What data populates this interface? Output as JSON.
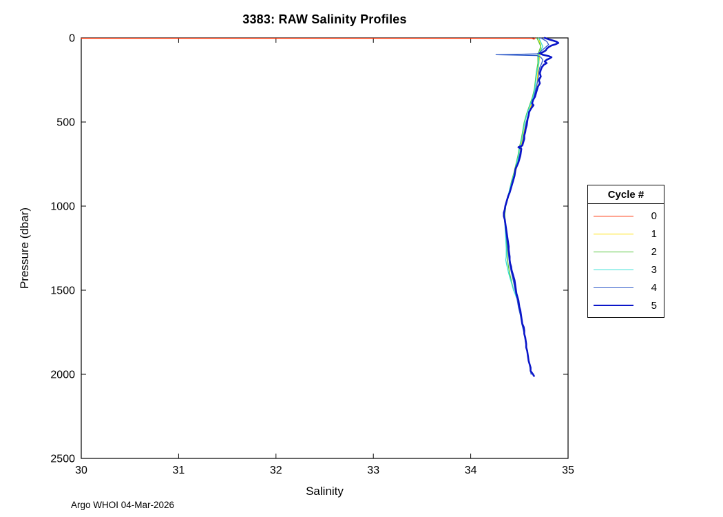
{
  "figure": {
    "title": "3383: RAW Salinity Profiles",
    "footer": "Argo WHOI 04-Mar-2026"
  },
  "chart_data": {
    "type": "line",
    "title": "3383: RAW Salinity Profiles",
    "xlabel": "Salinity",
    "ylabel": "Pressure (dbar)",
    "xlim": [
      30,
      35
    ],
    "ylim": [
      0,
      2500
    ],
    "y_axis_reversed": true,
    "x_ticks": [
      "30",
      "31",
      "32",
      "33",
      "34",
      "35"
    ],
    "x_tick_values": [
      30,
      31,
      32,
      33,
      34,
      35
    ],
    "y_ticks": [
      "0",
      "500",
      "1000",
      "1500",
      "2000",
      "2500"
    ],
    "y_tick_values": [
      0,
      500,
      1000,
      1500,
      2000,
      2500
    ],
    "grid": false,
    "legend": {
      "title": "Cycle #",
      "position": "right-outside"
    },
    "series": [
      {
        "name": "0",
        "color": "#ff2e00",
        "width": 1.3,
        "points": [
          [
            30,
            2
          ],
          [
            34.63,
            2
          ],
          [
            34.65,
            8
          ],
          [
            34.66,
            0
          ]
        ]
      },
      {
        "name": "1",
        "color": "#ffe000",
        "width": 1.3,
        "points": [
          [
            34.7,
            0
          ],
          [
            34.72,
            50
          ],
          [
            34.71,
            100
          ],
          [
            34.7,
            150
          ],
          [
            34.69,
            200
          ],
          [
            34.68,
            300
          ],
          [
            34.66,
            350
          ],
          [
            34.62,
            400
          ],
          [
            34.57,
            500
          ],
          [
            34.53,
            600
          ],
          [
            34.5,
            700
          ],
          [
            34.46,
            800
          ],
          [
            34.41,
            900
          ],
          [
            34.36,
            1000
          ],
          [
            34.35,
            1050
          ],
          [
            34.355,
            1100
          ],
          [
            34.375,
            1200
          ],
          [
            34.395,
            1300
          ],
          [
            34.425,
            1400
          ],
          [
            34.46,
            1500
          ]
        ]
      },
      {
        "name": "2",
        "color": "#53c63b",
        "width": 1.3,
        "points": [
          [
            34.68,
            0
          ],
          [
            34.72,
            50
          ],
          [
            34.69,
            100
          ],
          [
            34.69,
            150
          ],
          [
            34.675,
            200
          ],
          [
            34.665,
            250
          ],
          [
            34.655,
            300
          ],
          [
            34.635,
            350
          ],
          [
            34.605,
            400
          ],
          [
            34.575,
            450
          ],
          [
            34.55,
            500
          ],
          [
            34.535,
            550
          ],
          [
            34.52,
            600
          ],
          [
            34.5,
            650
          ],
          [
            34.485,
            700
          ],
          [
            34.465,
            750
          ],
          [
            34.445,
            800
          ],
          [
            34.42,
            850
          ],
          [
            34.4,
            900
          ],
          [
            34.38,
            950
          ],
          [
            34.36,
            1000
          ],
          [
            34.35,
            1050
          ],
          [
            34.355,
            1100
          ],
          [
            34.36,
            1150
          ],
          [
            34.365,
            1200
          ],
          [
            34.37,
            1250
          ],
          [
            34.375,
            1300
          ],
          [
            34.385,
            1350
          ],
          [
            34.4,
            1400
          ],
          [
            34.42,
            1450
          ],
          [
            34.44,
            1500
          ]
        ]
      },
      {
        "name": "3",
        "color": "#35e0d5",
        "width": 1.3,
        "points": [
          [
            34.7,
            0
          ],
          [
            34.74,
            50
          ],
          [
            34.7,
            100
          ],
          [
            34.7,
            150
          ],
          [
            34.68,
            200
          ],
          [
            34.67,
            250
          ],
          [
            34.66,
            300
          ],
          [
            34.64,
            350
          ],
          [
            34.61,
            400
          ],
          [
            34.58,
            450
          ],
          [
            34.555,
            500
          ],
          [
            34.54,
            550
          ],
          [
            34.525,
            600
          ],
          [
            34.505,
            650
          ],
          [
            34.49,
            700
          ],
          [
            34.47,
            750
          ],
          [
            34.45,
            800
          ],
          [
            34.425,
            850
          ],
          [
            34.4,
            900
          ],
          [
            34.38,
            950
          ],
          [
            34.36,
            1000
          ],
          [
            34.345,
            1050
          ],
          [
            34.35,
            1100
          ],
          [
            34.355,
            1150
          ],
          [
            34.36,
            1200
          ],
          [
            34.365,
            1250
          ],
          [
            34.365,
            1300
          ],
          [
            34.36,
            1320
          ],
          [
            34.37,
            1350
          ],
          [
            34.39,
            1400
          ],
          [
            34.4,
            1420
          ],
          [
            34.41,
            1440
          ],
          [
            34.42,
            1460
          ],
          [
            34.43,
            1480
          ],
          [
            34.44,
            1500
          ],
          [
            34.455,
            1520
          ],
          [
            34.47,
            1545
          ]
        ]
      },
      {
        "name": "4",
        "color": "#2d59c8",
        "width": 1.3,
        "points": [
          [
            34.72,
            0
          ],
          [
            34.78,
            20
          ],
          [
            34.8,
            40
          ],
          [
            34.76,
            60
          ],
          [
            34.72,
            80
          ],
          [
            34.7,
            90
          ],
          [
            34.68,
            95
          ],
          [
            34.26,
            100
          ],
          [
            34.68,
            105
          ],
          [
            34.72,
            115
          ],
          [
            34.74,
            130
          ],
          [
            34.73,
            150
          ],
          [
            34.71,
            175
          ],
          [
            34.7,
            200
          ],
          [
            34.69,
            250
          ],
          [
            34.67,
            300
          ],
          [
            34.65,
            350
          ],
          [
            34.63,
            400
          ],
          [
            34.6,
            450
          ],
          [
            34.57,
            500
          ],
          [
            34.555,
            550
          ],
          [
            34.54,
            600
          ],
          [
            34.52,
            650
          ],
          [
            34.5,
            700
          ],
          [
            34.48,
            750
          ],
          [
            34.455,
            800
          ],
          [
            34.43,
            850
          ],
          [
            34.41,
            900
          ],
          [
            34.385,
            950
          ],
          [
            34.36,
            1000
          ],
          [
            34.345,
            1050
          ],
          [
            34.35,
            1100
          ],
          [
            34.36,
            1150
          ],
          [
            34.37,
            1200
          ],
          [
            34.38,
            1250
          ],
          [
            34.39,
            1300
          ],
          [
            34.4,
            1350
          ],
          [
            34.42,
            1400
          ],
          [
            34.44,
            1450
          ],
          [
            34.455,
            1500
          ],
          [
            34.475,
            1550
          ],
          [
            34.49,
            1600
          ],
          [
            34.51,
            1650
          ],
          [
            34.525,
            1700
          ],
          [
            34.545,
            1750
          ],
          [
            34.56,
            1800
          ],
          [
            34.575,
            1850
          ],
          [
            34.59,
            1900
          ],
          [
            34.605,
            1950
          ],
          [
            34.62,
            2000
          ]
        ]
      },
      {
        "name": "5",
        "color": "#0b16c9",
        "width": 2.6,
        "points": [
          [
            34.76,
            0
          ],
          [
            34.8,
            8
          ],
          [
            34.84,
            15
          ],
          [
            34.88,
            22
          ],
          [
            34.9,
            30
          ],
          [
            34.87,
            38
          ],
          [
            34.83,
            45
          ],
          [
            34.8,
            55
          ],
          [
            34.78,
            65
          ],
          [
            34.77,
            75
          ],
          [
            34.74,
            85
          ],
          [
            34.71,
            92
          ],
          [
            34.74,
            100
          ],
          [
            34.8,
            108
          ],
          [
            34.83,
            115
          ],
          [
            34.81,
            122
          ],
          [
            34.78,
            130
          ],
          [
            34.76,
            140
          ],
          [
            34.78,
            150
          ],
          [
            34.75,
            160
          ],
          [
            34.73,
            175
          ],
          [
            34.72,
            190
          ],
          [
            34.71,
            210
          ],
          [
            34.72,
            230
          ],
          [
            34.7,
            250
          ],
          [
            34.71,
            270
          ],
          [
            34.69,
            290
          ],
          [
            34.68,
            310
          ],
          [
            34.67,
            330
          ],
          [
            34.66,
            350
          ],
          [
            34.64,
            370
          ],
          [
            34.63,
            390
          ],
          [
            34.645,
            400
          ],
          [
            34.62,
            420
          ],
          [
            34.6,
            440
          ],
          [
            34.595,
            460
          ],
          [
            34.585,
            480
          ],
          [
            34.58,
            500
          ],
          [
            34.575,
            520
          ],
          [
            34.565,
            540
          ],
          [
            34.56,
            560
          ],
          [
            34.55,
            580
          ],
          [
            34.55,
            600
          ],
          [
            34.54,
            620
          ],
          [
            34.53,
            640
          ],
          [
            34.49,
            650
          ],
          [
            34.52,
            660
          ],
          [
            34.515,
            680
          ],
          [
            34.51,
            700
          ],
          [
            34.5,
            720
          ],
          [
            34.49,
            740
          ],
          [
            34.475,
            760
          ],
          [
            34.46,
            780
          ],
          [
            34.455,
            800
          ],
          [
            34.45,
            820
          ],
          [
            34.44,
            840
          ],
          [
            34.43,
            860
          ],
          [
            34.42,
            880
          ],
          [
            34.41,
            900
          ],
          [
            34.4,
            920
          ],
          [
            34.385,
            940
          ],
          [
            34.375,
            960
          ],
          [
            34.365,
            980
          ],
          [
            34.355,
            1000
          ],
          [
            34.35,
            1020
          ],
          [
            34.34,
            1040
          ],
          [
            34.34,
            1060
          ],
          [
            34.35,
            1080
          ],
          [
            34.355,
            1100
          ],
          [
            34.36,
            1120
          ],
          [
            34.365,
            1140
          ],
          [
            34.37,
            1160
          ],
          [
            34.375,
            1180
          ],
          [
            34.38,
            1200
          ],
          [
            34.385,
            1220
          ],
          [
            34.39,
            1240
          ],
          [
            34.39,
            1260
          ],
          [
            34.395,
            1280
          ],
          [
            34.4,
            1300
          ],
          [
            34.4,
            1320
          ],
          [
            34.405,
            1340
          ],
          [
            34.415,
            1360
          ],
          [
            34.42,
            1380
          ],
          [
            34.43,
            1400
          ],
          [
            34.44,
            1420
          ],
          [
            34.45,
            1440
          ],
          [
            34.455,
            1460
          ],
          [
            34.46,
            1480
          ],
          [
            34.465,
            1500
          ],
          [
            34.47,
            1520
          ],
          [
            34.48,
            1540
          ],
          [
            34.49,
            1560
          ],
          [
            34.495,
            1580
          ],
          [
            34.5,
            1600
          ],
          [
            34.51,
            1620
          ],
          [
            34.515,
            1640
          ],
          [
            34.52,
            1660
          ],
          [
            34.525,
            1680
          ],
          [
            34.53,
            1700
          ],
          [
            34.545,
            1720
          ],
          [
            34.55,
            1740
          ],
          [
            34.55,
            1760
          ],
          [
            34.56,
            1780
          ],
          [
            34.565,
            1800
          ],
          [
            34.57,
            1820
          ],
          [
            34.57,
            1840
          ],
          [
            34.58,
            1860
          ],
          [
            34.585,
            1880
          ],
          [
            34.59,
            1900
          ],
          [
            34.595,
            1920
          ],
          [
            34.605,
            1940
          ],
          [
            34.615,
            1960
          ],
          [
            34.615,
            1980
          ],
          [
            34.64,
            2000
          ],
          [
            34.65,
            2010
          ]
        ]
      }
    ]
  }
}
